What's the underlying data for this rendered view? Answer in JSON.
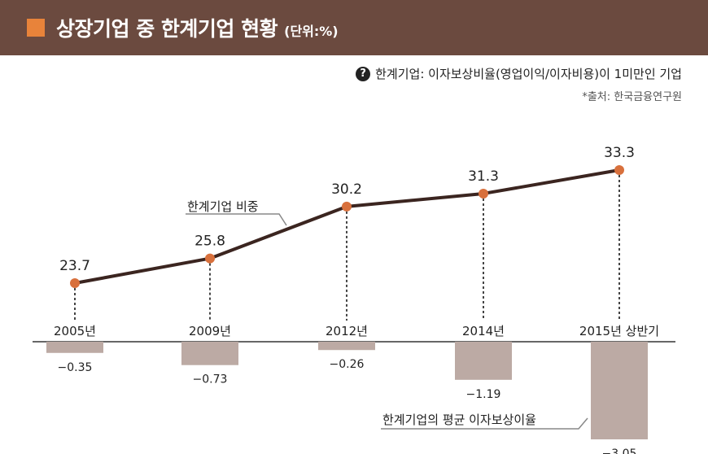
{
  "header": {
    "title": "상장기업 중 한계기업 현황",
    "unit": "(단위:%)"
  },
  "note": {
    "icon": "question-icon",
    "text": "한계기업: 이자보상비율(영업이익/이자비용)이 1미만인 기업"
  },
  "source": "*출처: 한국금융연구원",
  "colors": {
    "header_bg": "#6b4a3f",
    "accent": "#e8833a",
    "line": "#3b2520",
    "marker": "#d8703c",
    "bar": "#bcaaa4"
  },
  "chart_data": [
    {
      "type": "line",
      "series": [
        {
          "name": "한계기업 비중",
          "values": [
            23.7,
            25.8,
            30.2,
            31.3,
            33.3
          ],
          "labels": [
            "23.7",
            "25.8",
            "30.2",
            "31.3",
            "33.3"
          ]
        }
      ],
      "categories": [
        "2005년",
        "2009년",
        "2012년",
        "2014년",
        "2015년 상반기"
      ]
    },
    {
      "type": "bar",
      "series": [
        {
          "name": "한계기업의 평균 이자보상이율",
          "values": [
            -0.35,
            -0.73,
            -0.26,
            -1.19,
            -3.05
          ],
          "labels": [
            "−0.35",
            "−0.73",
            "−0.26",
            "−1.19",
            "−3.05"
          ]
        }
      ],
      "categories": [
        "2005년",
        "2009년",
        "2012년",
        "2014년",
        "2015년 상반기"
      ]
    }
  ]
}
